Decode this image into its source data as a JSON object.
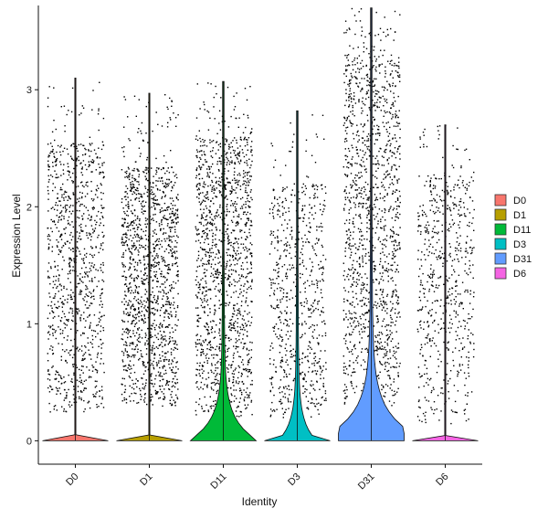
{
  "chart_data": {
    "type": "violin",
    "xlabel": "Identity",
    "ylabel": "Expression Level",
    "ylim": [
      -0.2,
      3.72
    ],
    "yticks": [
      0,
      1,
      2,
      3
    ],
    "categories": [
      "D0",
      "D1",
      "D11",
      "D3",
      "D31",
      "D6"
    ],
    "series": [
      {
        "name": "D0",
        "color": "#F8766D",
        "max": 3.1,
        "point_density": 0.7,
        "point_range": [
          0.25,
          2.55
        ],
        "zero_fraction": 0.97
      },
      {
        "name": "D1",
        "color": "#B79F00",
        "max": 2.97,
        "point_density": 1.0,
        "point_range": [
          0.3,
          2.35
        ],
        "zero_fraction": 0.96
      },
      {
        "name": "D11",
        "color": "#00BA38",
        "max": 3.07,
        "point_density": 1.0,
        "point_range": [
          0.2,
          2.6
        ],
        "zero_fraction": 0.7
      },
      {
        "name": "D3",
        "color": "#00BFC4",
        "max": 2.82,
        "point_density": 0.5,
        "point_range": [
          0.2,
          2.2
        ],
        "zero_fraction": 0.85
      },
      {
        "name": "D31",
        "color": "#619CFF",
        "max": 3.7,
        "point_density": 1.0,
        "point_range": [
          0.3,
          3.3
        ],
        "zero_fraction": 0.5
      },
      {
        "name": "D6",
        "color": "#F564E3",
        "max": 2.7,
        "point_density": 0.45,
        "point_range": [
          0.15,
          2.3
        ],
        "zero_fraction": 0.97
      }
    ],
    "legend": {
      "position": "right",
      "entries": [
        "D0",
        "D1",
        "D11",
        "D3",
        "D31",
        "D6"
      ]
    },
    "grid": false
  }
}
